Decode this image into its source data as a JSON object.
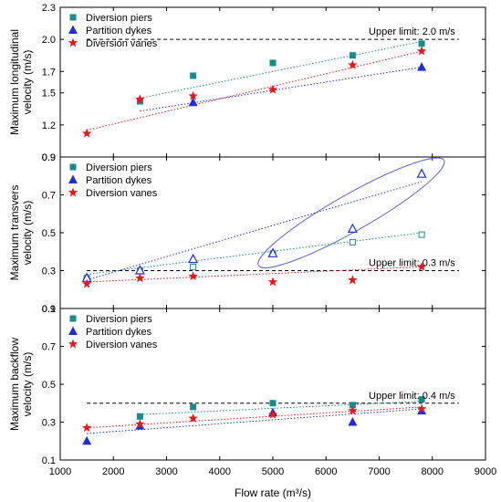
{
  "chart_data": [
    {
      "type": "scatter",
      "id": "longitudinal",
      "ylabel_lines": [
        "Maximum longitudinal",
        "velocity (m/s)"
      ],
      "xlim": [
        1000,
        9000
      ],
      "ylim": [
        0.9,
        2.3
      ],
      "yticks": [
        "0.9",
        "1.2",
        "1.5",
        "1.7",
        "2.0",
        "2.3"
      ],
      "ytick_values": [
        0.9,
        1.2,
        1.5,
        1.7,
        2.0,
        2.3
      ],
      "limit": {
        "value": 2.0,
        "label": "Upper limit: 2.0 m/s"
      },
      "legend_position": "top-left",
      "series": [
        {
          "name": "Diversion piers",
          "marker": "square-filled",
          "color": "#1a8a8a",
          "x": [
            2500,
            3500,
            5000,
            6500,
            7800
          ],
          "y": [
            1.42,
            1.66,
            1.78,
            1.85,
            1.96
          ],
          "trend": [
            [
              2500,
              1.45
            ],
            [
              7800,
              1.98
            ]
          ]
        },
        {
          "name": "Partition dykes",
          "marker": "triangle-filled",
          "color": "#1f2fd6",
          "x": [
            3500,
            7800
          ],
          "y": [
            1.41,
            1.74
          ],
          "trend": [
            [
              2500,
              1.33
            ],
            [
              7800,
              1.74
            ]
          ]
        },
        {
          "name": "Diversion vanes",
          "marker": "star",
          "color": "#e8151b",
          "x": [
            1500,
            2500,
            3500,
            5000,
            6500,
            7800
          ],
          "y": [
            1.12,
            1.44,
            1.47,
            1.53,
            1.76,
            1.89
          ],
          "trend": [
            [
              1500,
              1.15
            ],
            [
              7800,
              1.89
            ]
          ]
        }
      ]
    },
    {
      "type": "scatter",
      "id": "transverse",
      "ylabel_lines": [
        "Maximum transvers",
        "velocity (m/s)"
      ],
      "xlim": [
        1000,
        9000
      ],
      "ylim": [
        0.1,
        0.9
      ],
      "yticks": [
        "0.1",
        "0.3",
        "0.5",
        "0.7",
        "0.9"
      ],
      "ytick_values": [
        0.1,
        0.3,
        0.5,
        0.7,
        0.9
      ],
      "limit": {
        "value": 0.3,
        "label": "Upper limit: 0.3 m/s"
      },
      "legend_position": "top-left",
      "series": [
        {
          "name": "Diversion piers",
          "marker": "square",
          "color": "#1a8a8a",
          "x": [
            1500,
            2500,
            3500,
            5000,
            6500,
            7800
          ],
          "y": [
            0.26,
            0.3,
            0.32,
            0.39,
            0.45,
            0.49
          ],
          "trend": [
            [
              1500,
              0.28
            ],
            [
              7800,
              0.5
            ]
          ]
        },
        {
          "name": "Partition dykes",
          "marker": "triangle",
          "color": "#1f2fd6",
          "x": [
            1500,
            2500,
            3500,
            5000,
            6500,
            7800
          ],
          "y": [
            0.26,
            0.3,
            0.36,
            0.39,
            0.52,
            0.81
          ],
          "trend": [
            [
              1500,
              0.25
            ],
            [
              7800,
              0.77
            ]
          ]
        },
        {
          "name": "Diversion vanes",
          "marker": "star",
          "color": "#e8151b",
          "x": [
            1500,
            2500,
            3500,
            5000,
            6500,
            7800
          ],
          "y": [
            0.23,
            0.26,
            0.27,
            0.24,
            0.25,
            0.32
          ],
          "trend": [
            [
              1500,
              0.24
            ],
            [
              7800,
              0.32
            ]
          ]
        }
      ],
      "ellipse_note": "blue ellipse around Partition dykes points 5000–7800"
    },
    {
      "type": "scatter",
      "id": "backflow",
      "ylabel_lines": [
        "Maximum backflow",
        "velocity (m/s)"
      ],
      "xlim": [
        1000,
        9000
      ],
      "ylim": [
        0.1,
        0.9
      ],
      "xticks": [
        "1000",
        "2000",
        "3000",
        "4000",
        "5000",
        "6000",
        "7000",
        "8000",
        "9000"
      ],
      "xtick_values": [
        1000,
        2000,
        3000,
        4000,
        5000,
        6000,
        7000,
        8000,
        9000
      ],
      "yticks": [
        "0.1",
        "0.3",
        "0.5",
        "0.7",
        "0.9"
      ],
      "ytick_values": [
        0.1,
        0.3,
        0.5,
        0.7,
        0.9
      ],
      "limit": {
        "value": 0.4,
        "label": "Upper limit: 0.4 m/s"
      },
      "legend_position": "top-left",
      "series": [
        {
          "name": "Diversion piers",
          "marker": "square-filled",
          "color": "#1a8a8a",
          "x": [
            2500,
            3500,
            5000,
            6500,
            7800
          ],
          "y": [
            0.33,
            0.38,
            0.4,
            0.39,
            0.42
          ],
          "trend": [
            [
              2500,
              0.34
            ],
            [
              7800,
              0.41
            ]
          ]
        },
        {
          "name": "Partition dykes",
          "marker": "triangle-filled",
          "color": "#1f2fd6",
          "x": [
            1500,
            2500,
            5000,
            6500,
            7800
          ],
          "y": [
            0.2,
            0.28,
            0.35,
            0.3,
            0.36
          ],
          "trend": [
            [
              1500,
              0.24
            ],
            [
              7800,
              0.37
            ]
          ]
        },
        {
          "name": "Diversion vanes",
          "marker": "star",
          "color": "#e8151b",
          "x": [
            1500,
            2500,
            3500,
            5000,
            6500,
            7800
          ],
          "y": [
            0.27,
            0.29,
            0.32,
            0.34,
            0.36,
            0.37
          ],
          "trend": [
            [
              1500,
              0.27
            ],
            [
              7800,
              0.38
            ]
          ]
        }
      ]
    }
  ],
  "xlabel": "Flow rate (m³/s)"
}
